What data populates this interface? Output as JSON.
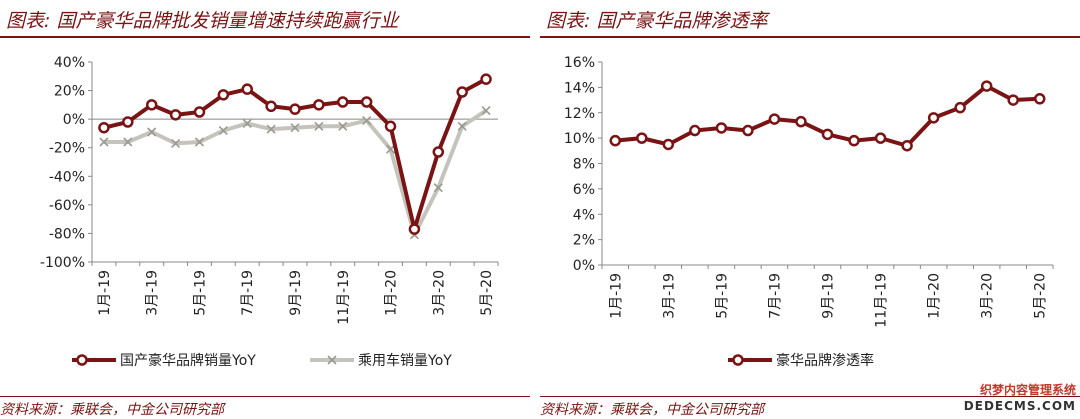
{
  "left": {
    "title": "图表: 国产豪华品牌批发销量增速持续跑赢行业",
    "source": "资料来源：乘联会，中金公司研究部"
  },
  "right": {
    "title": "图表: 国产豪华品牌渗透率",
    "source": "资料来源：乘联会，中金公司研究部"
  },
  "watermark": {
    "line1": "织梦内容管理系统",
    "line2": "DEDECMS.COM"
  },
  "colors": {
    "accent": "#7a1414",
    "series_primary": "#7a1414",
    "series_secondary": "#c4c4bc"
  },
  "chart_data": [
    {
      "type": "line",
      "x": [
        "1月-19",
        "2月-19",
        "3月-19",
        "4月-19",
        "5月-19",
        "6月-19",
        "7月-19",
        "8月-19",
        "9月-19",
        "10月-19",
        "11月-19",
        "12月-19",
        "1月-20",
        "2月-20",
        "3月-20",
        "4月-20",
        "5月-20"
      ],
      "tick_labels": [
        "1月-19",
        "",
        "3月-19",
        "",
        "5月-19",
        "",
        "7月-19",
        "",
        "9月-19",
        "",
        "11月-19",
        "",
        "1月-20",
        "",
        "3月-20",
        "",
        "5月-20"
      ],
      "series": [
        {
          "name": "国产豪华品牌销量YoY",
          "marker": "circle",
          "values": [
            -6,
            -2,
            10,
            3,
            5,
            17,
            21,
            9,
            7,
            10,
            12,
            12,
            -5,
            -77,
            -23,
            19,
            28
          ]
        },
        {
          "name": "乘用车销量YoY",
          "marker": "x",
          "values": [
            -16,
            -16,
            -9,
            -17,
            -16,
            -8,
            -3,
            -7,
            -6,
            -5,
            -5,
            -1,
            -21,
            -81,
            -48,
            -5,
            6
          ]
        }
      ],
      "ylim": [
        -100,
        40
      ],
      "yticks": [
        40,
        20,
        0,
        -20,
        -40,
        -60,
        -80,
        -100
      ],
      "ytick_labels": [
        "40%",
        "20%",
        "0%",
        "-20%",
        "-40%",
        "-60%",
        "-80%",
        "-100%"
      ],
      "zero_line": true,
      "grid": false,
      "legend_position": "bottom"
    },
    {
      "type": "line",
      "x": [
        "1月-19",
        "2月-19",
        "3月-19",
        "4月-19",
        "5月-19",
        "6月-19",
        "7月-19",
        "8月-19",
        "9月-19",
        "10月-19",
        "11月-19",
        "12月-19",
        "1月-20",
        "2月-20",
        "3月-20",
        "4月-20",
        "5月-20"
      ],
      "tick_labels": [
        "1月-19",
        "",
        "3月-19",
        "",
        "5月-19",
        "",
        "7月-19",
        "",
        "9月-19",
        "",
        "11月-19",
        "",
        "1月-20",
        "",
        "3月-20",
        "",
        "5月-20"
      ],
      "series": [
        {
          "name": "豪华品牌渗透率",
          "marker": "circle",
          "values": [
            9.8,
            10.0,
            9.5,
            10.6,
            10.8,
            10.6,
            11.5,
            11.3,
            10.3,
            9.8,
            10.0,
            9.4,
            11.6,
            12.4,
            14.1,
            13.0,
            13.1
          ]
        }
      ],
      "ylim": [
        0,
        16
      ],
      "yticks": [
        16,
        14,
        12,
        10,
        8,
        6,
        4,
        2,
        0
      ],
      "ytick_labels": [
        "16%",
        "14%",
        "12%",
        "10%",
        "8%",
        "6%",
        "4%",
        "2%",
        "0%"
      ],
      "grid": false,
      "legend_position": "bottom"
    }
  ]
}
